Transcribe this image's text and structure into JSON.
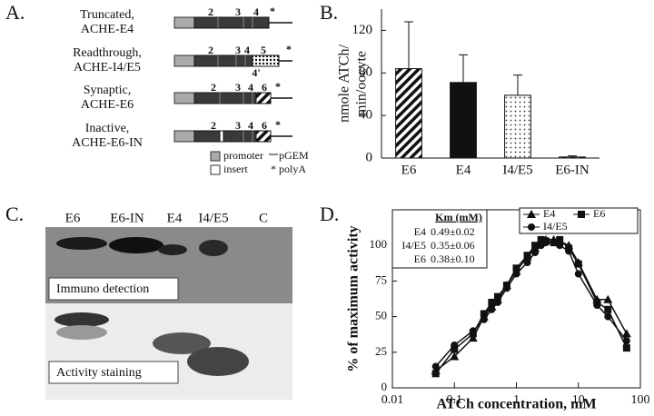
{
  "panel_a": {
    "label": "A.",
    "rows": [
      {
        "name": [
          "Truncated,",
          "ACHE-E4"
        ],
        "marks": [
          "2",
          "3",
          "4",
          "*"
        ]
      },
      {
        "name": [
          "Readthrough,",
          "ACHE-I4/E5"
        ],
        "marks": [
          "2",
          "3",
          "4",
          "5",
          "*",
          "4'"
        ]
      },
      {
        "name": [
          "Synaptic,",
          "ACHE-E6"
        ],
        "marks": [
          "2",
          "3",
          "4",
          "6",
          "*"
        ]
      },
      {
        "name": [
          "Inactive,",
          "ACHE-E6-IN"
        ],
        "marks": [
          "2",
          "3",
          "4",
          "6",
          "*"
        ]
      }
    ],
    "legend": [
      "promoter",
      "insert",
      "pGEM",
      "* polyA"
    ]
  },
  "panel_c": {
    "label": "C.",
    "lanes": [
      "E6",
      "E6-IN",
      "E4",
      "I4/E5",
      "C"
    ],
    "top_label": "Immuno detection",
    "bottom_label": "Activity staining"
  },
  "chart_data": [
    {
      "type": "bar",
      "label": "B.",
      "ylabel": [
        "nmole ATCh/",
        "min/oocyte"
      ],
      "categories": [
        "E6",
        "E4",
        "I4/E5",
        "E6-IN"
      ],
      "values": [
        84,
        71,
        59,
        1
      ],
      "errors": [
        44,
        26,
        19,
        1
      ],
      "patterns": [
        "hatch",
        "solid",
        "dots",
        "hatch"
      ],
      "ylim": [
        0,
        140
      ],
      "yticks": [
        0,
        40,
        80,
        120
      ]
    },
    {
      "type": "line",
      "label": "D.",
      "xlabel": "ATCh concentration, mM",
      "ylabel": "% of maximum activity",
      "xscale": "log",
      "x": [
        0.05,
        0.1,
        0.2,
        0.3,
        0.4,
        0.5,
        0.7,
        1,
        1.5,
        2,
        2.5,
        3,
        4,
        5,
        7,
        10,
        20,
        30,
        60
      ],
      "series": [
        {
          "name": "E4",
          "marker": "triangle",
          "color": "#111",
          "values": [
            12,
            22,
            35,
            50,
            57,
            62,
            72,
            82,
            92,
            98,
            102,
            104,
            104,
            103,
            100,
            88,
            62,
            62,
            38
          ]
        },
        {
          "name": "E6",
          "marker": "square",
          "color": "#111",
          "values": [
            10,
            27,
            38,
            52,
            60,
            64,
            72,
            84,
            93,
            100,
            104,
            103,
            102,
            104,
            98,
            87,
            60,
            55,
            28
          ]
        },
        {
          "name": "I4/E5",
          "marker": "circle",
          "color": "#111",
          "values": [
            15,
            30,
            40,
            48,
            55,
            60,
            70,
            80,
            88,
            95,
            100,
            102,
            102,
            100,
            96,
            80,
            58,
            50,
            33
          ]
        }
      ],
      "xlim": [
        0.01,
        100
      ],
      "xticks": [
        0.01,
        0.1,
        1,
        10,
        100
      ],
      "ylim": [
        0,
        125
      ],
      "yticks": [
        0,
        25,
        50,
        75,
        100
      ],
      "km_table": {
        "header": "Km (mM)",
        "rows": [
          [
            "E4",
            "0.49±0.02"
          ],
          [
            "I4/E5",
            "0.35±0.06"
          ],
          [
            "E6",
            "0.38±0.10"
          ]
        ]
      }
    }
  ]
}
